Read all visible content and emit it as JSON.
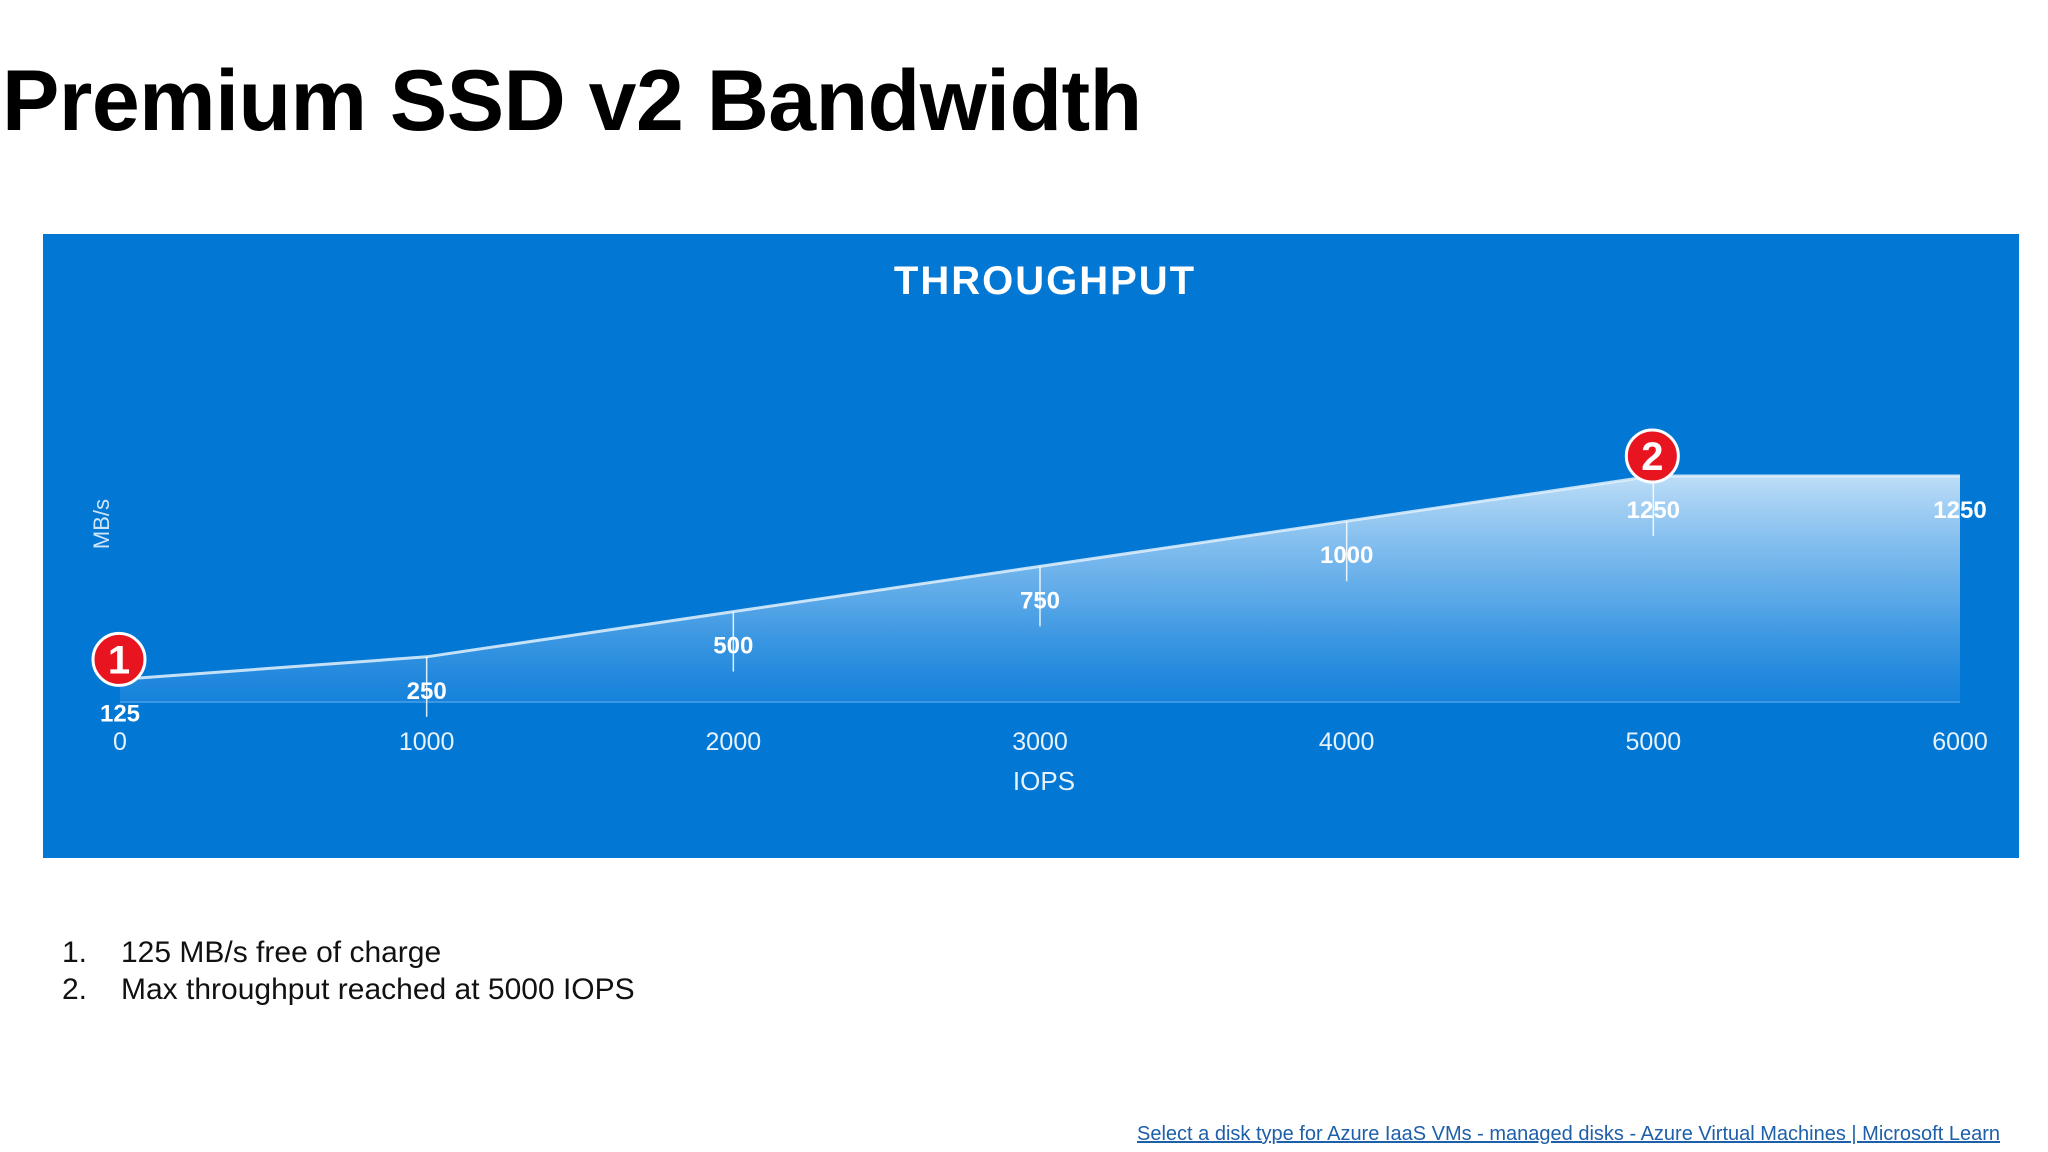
{
  "slide": {
    "title": "Premium SSD v2 Bandwidth"
  },
  "chart_data": {
    "type": "area",
    "title": "THROUGHPUT",
    "xlabel": "IOPS",
    "ylabel": "MB/s",
    "x": [
      0,
      1000,
      2000,
      3000,
      4000,
      5000,
      6000
    ],
    "x_tick_labels": [
      "0",
      "1000",
      "2000",
      "3000",
      "4000",
      "5000",
      "6000"
    ],
    "series": [
      {
        "values": [
          125,
          250,
          500,
          750,
          1000,
          1250,
          1250
        ]
      }
    ],
    "data_labels": [
      "125",
      "250",
      "500",
      "750",
      "1000",
      "1250",
      "1250"
    ],
    "ylim": [
      0,
      1250
    ],
    "grid": false,
    "background_color": "#0277d4",
    "marker_color": "#e8141f",
    "annotations": [
      {
        "label": "1",
        "x": 0,
        "y": 125
      },
      {
        "label": "2",
        "x": 5000,
        "y": 1250
      }
    ]
  },
  "notes": [
    {
      "number": "1.",
      "text": "125 MB/s free of charge"
    },
    {
      "number": "2.",
      "text": "Max throughput reached at 5000 IOPS"
    }
  ],
  "source_link": "Select a disk type for Azure IaaS VMs - managed disks - Azure Virtual Machines | Microsoft Learn"
}
